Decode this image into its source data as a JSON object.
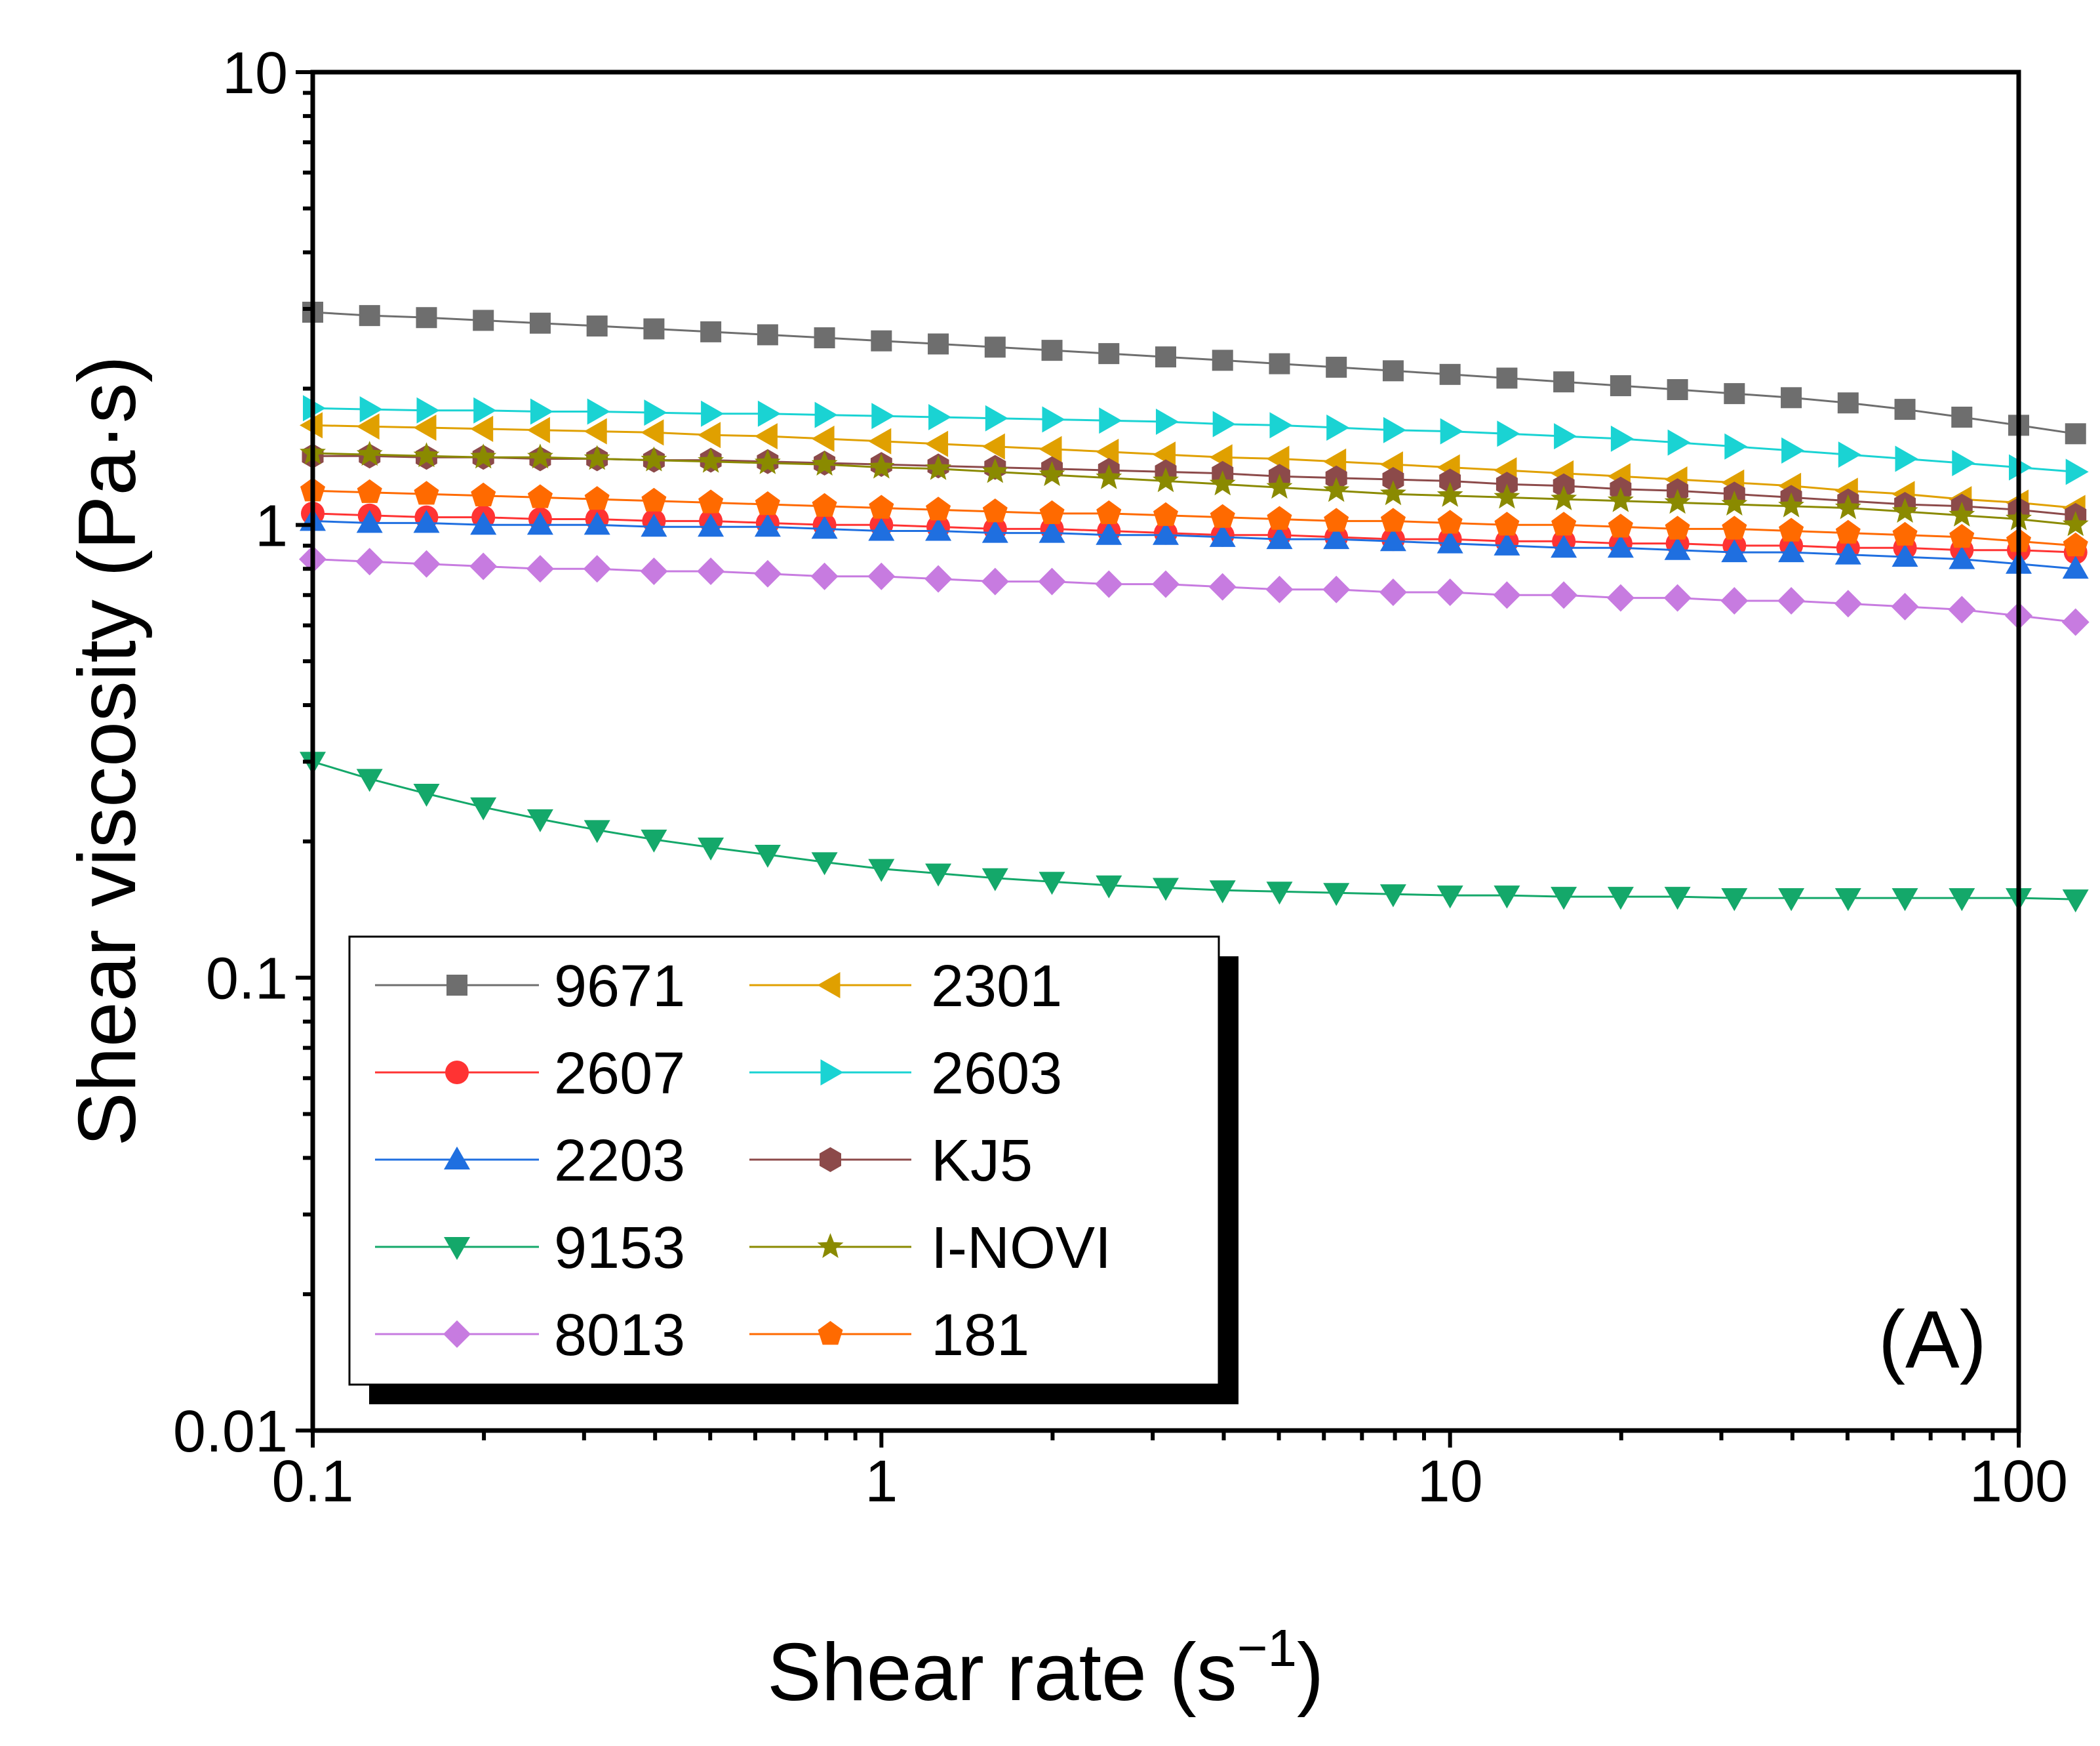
{
  "chart_data": {
    "type": "line",
    "panel_label": "(A)",
    "xlabel": "Shear rate (s",
    "xlabel_sup": "−1",
    "xlabel_close": ")",
    "ylabel": "Shear viscosity (Pa·s)",
    "xscale": "log",
    "yscale": "log",
    "xlim": [
      0.1,
      100
    ],
    "ylim": [
      0.01,
      10
    ],
    "xticks": [
      {
        "value": 0.1,
        "label": "0.1"
      },
      {
        "value": 1,
        "label": "1"
      },
      {
        "value": 10,
        "label": "10"
      },
      {
        "value": 100,
        "label": "100"
      }
    ],
    "yticks": [
      {
        "value": 0.01,
        "label": "0.01"
      },
      {
        "value": 0.1,
        "label": "0.1"
      },
      {
        "value": 1,
        "label": "1"
      },
      {
        "value": 10,
        "label": "10"
      }
    ],
    "grid": false,
    "legend_position": "bottom-left",
    "legend_columns": 2,
    "x_start": 0.1,
    "points_per_decade": 10,
    "series": [
      {
        "name": "9671",
        "color": "#6e6e6e",
        "marker": "square",
        "values": [
          2.95,
          2.9,
          2.87,
          2.83,
          2.79,
          2.75,
          2.71,
          2.67,
          2.63,
          2.59,
          2.55,
          2.51,
          2.47,
          2.43,
          2.39,
          2.35,
          2.31,
          2.27,
          2.23,
          2.19,
          2.15,
          2.11,
          2.07,
          2.03,
          1.99,
          1.95,
          1.91,
          1.86,
          1.8,
          1.73,
          1.66,
          1.59
        ]
      },
      {
        "name": "2607",
        "color": "#ff3333",
        "marker": "circle",
        "values": [
          1.06,
          1.05,
          1.04,
          1.04,
          1.03,
          1.03,
          1.02,
          1.02,
          1.01,
          1.0,
          1.0,
          0.99,
          0.98,
          0.98,
          0.97,
          0.96,
          0.95,
          0.95,
          0.94,
          0.93,
          0.93,
          0.92,
          0.92,
          0.91,
          0.91,
          0.9,
          0.9,
          0.89,
          0.89,
          0.88,
          0.88,
          0.87
        ]
      },
      {
        "name": "2203",
        "color": "#1f6fe0",
        "marker": "triangle-up",
        "values": [
          1.02,
          1.01,
          1.01,
          1.0,
          1.0,
          1.0,
          0.99,
          0.99,
          0.99,
          0.98,
          0.97,
          0.97,
          0.96,
          0.96,
          0.95,
          0.95,
          0.94,
          0.93,
          0.93,
          0.92,
          0.91,
          0.9,
          0.89,
          0.89,
          0.88,
          0.87,
          0.87,
          0.86,
          0.85,
          0.84,
          0.82,
          0.8
        ]
      },
      {
        "name": "9153",
        "color": "#14a86a",
        "marker": "triangle-down",
        "values": [
          0.3,
          0.275,
          0.255,
          0.238,
          0.224,
          0.212,
          0.202,
          0.194,
          0.187,
          0.18,
          0.174,
          0.17,
          0.166,
          0.163,
          0.16,
          0.158,
          0.156,
          0.155,
          0.154,
          0.153,
          0.152,
          0.152,
          0.151,
          0.151,
          0.151,
          0.15,
          0.15,
          0.15,
          0.15,
          0.15,
          0.15,
          0.149
        ]
      },
      {
        "name": "8013",
        "color": "#c77be0",
        "marker": "diamond",
        "values": [
          0.84,
          0.83,
          0.82,
          0.81,
          0.8,
          0.8,
          0.79,
          0.79,
          0.78,
          0.77,
          0.77,
          0.76,
          0.75,
          0.75,
          0.74,
          0.74,
          0.73,
          0.72,
          0.72,
          0.71,
          0.71,
          0.7,
          0.7,
          0.69,
          0.69,
          0.68,
          0.68,
          0.67,
          0.66,
          0.65,
          0.63,
          0.61
        ]
      },
      {
        "name": "2301",
        "color": "#e0a000",
        "marker": "triangle-left",
        "values": [
          1.66,
          1.65,
          1.64,
          1.63,
          1.62,
          1.61,
          1.6,
          1.58,
          1.57,
          1.55,
          1.53,
          1.51,
          1.49,
          1.47,
          1.45,
          1.43,
          1.41,
          1.4,
          1.38,
          1.36,
          1.34,
          1.32,
          1.3,
          1.28,
          1.26,
          1.24,
          1.22,
          1.19,
          1.17,
          1.14,
          1.12,
          1.09
        ]
      },
      {
        "name": "2603",
        "color": "#1ad3d3",
        "marker": "triangle-right",
        "values": [
          1.81,
          1.8,
          1.79,
          1.79,
          1.78,
          1.78,
          1.77,
          1.76,
          1.76,
          1.75,
          1.74,
          1.73,
          1.72,
          1.71,
          1.7,
          1.69,
          1.67,
          1.66,
          1.64,
          1.62,
          1.61,
          1.59,
          1.57,
          1.55,
          1.52,
          1.49,
          1.46,
          1.43,
          1.4,
          1.37,
          1.34,
          1.31
        ]
      },
      {
        "name": "KJ5",
        "color": "#8c4a4a",
        "marker": "hexagon",
        "values": [
          1.42,
          1.42,
          1.41,
          1.41,
          1.4,
          1.4,
          1.39,
          1.39,
          1.38,
          1.37,
          1.36,
          1.35,
          1.34,
          1.33,
          1.32,
          1.31,
          1.3,
          1.28,
          1.27,
          1.26,
          1.25,
          1.23,
          1.22,
          1.2,
          1.19,
          1.17,
          1.15,
          1.13,
          1.11,
          1.1,
          1.08,
          1.05
        ]
      },
      {
        "name": "I-NOVI",
        "color": "#8a8a00",
        "marker": "star",
        "values": [
          1.44,
          1.43,
          1.42,
          1.41,
          1.41,
          1.4,
          1.39,
          1.38,
          1.37,
          1.36,
          1.34,
          1.33,
          1.31,
          1.29,
          1.27,
          1.25,
          1.23,
          1.21,
          1.19,
          1.17,
          1.16,
          1.15,
          1.14,
          1.13,
          1.12,
          1.11,
          1.1,
          1.09,
          1.07,
          1.05,
          1.03,
          1.0
        ]
      },
      {
        "name": "181",
        "color": "#ff6a00",
        "marker": "pentagon",
        "values": [
          1.19,
          1.18,
          1.17,
          1.16,
          1.15,
          1.14,
          1.13,
          1.12,
          1.11,
          1.1,
          1.09,
          1.08,
          1.07,
          1.06,
          1.06,
          1.05,
          1.04,
          1.03,
          1.02,
          1.02,
          1.01,
          1.0,
          1.0,
          0.99,
          0.98,
          0.98,
          0.97,
          0.96,
          0.95,
          0.94,
          0.92,
          0.9
        ]
      }
    ]
  }
}
